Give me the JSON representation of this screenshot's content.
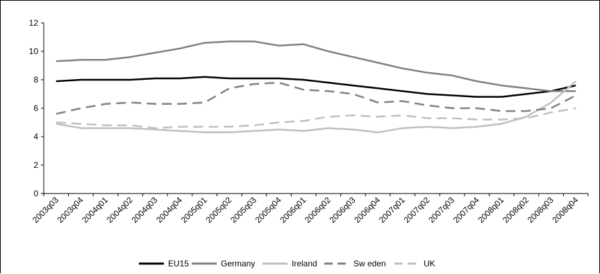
{
  "chart_data": {
    "type": "line",
    "title": "",
    "xlabel": "",
    "ylabel": "",
    "ylim": [
      0,
      12
    ],
    "yticks": [
      "0",
      "2",
      "4",
      "6",
      "8",
      "10",
      "12"
    ],
    "grid": false,
    "legend_position": "bottom",
    "categories": [
      "2003q03",
      "2003q04",
      "2004q01",
      "2004q02",
      "2004q03",
      "2004q04",
      "2005q01",
      "2005q02",
      "2005q03",
      "2005q04",
      "2006q01",
      "2006q02",
      "2006q03",
      "2006q04",
      "2007q01",
      "2007q02",
      "2007q03",
      "2007q04",
      "2008q01",
      "2008q02",
      "2008q03",
      "2008q04"
    ],
    "series": [
      {
        "name": "EU15",
        "color": "#000000",
        "dash": "solid",
        "values": [
          7.9,
          8.0,
          8.0,
          8.0,
          8.1,
          8.1,
          8.2,
          8.1,
          8.1,
          8.1,
          8.0,
          7.8,
          7.6,
          7.4,
          7.2,
          7.0,
          6.9,
          6.8,
          6.8,
          7.0,
          7.2,
          7.6
        ]
      },
      {
        "name": "Germany",
        "color": "#808080",
        "dash": "solid",
        "values": [
          9.3,
          9.4,
          9.4,
          9.6,
          9.9,
          10.2,
          10.6,
          10.7,
          10.7,
          10.4,
          10.5,
          10.0,
          9.6,
          9.2,
          8.8,
          8.5,
          8.3,
          7.9,
          7.6,
          7.4,
          7.2,
          7.2
        ]
      },
      {
        "name": "Ireland",
        "color": "#bfbfbf",
        "dash": "solid",
        "values": [
          4.9,
          4.6,
          4.6,
          4.6,
          4.5,
          4.4,
          4.3,
          4.3,
          4.4,
          4.5,
          4.4,
          4.6,
          4.5,
          4.3,
          4.6,
          4.7,
          4.6,
          4.7,
          4.9,
          5.4,
          6.4,
          7.9
        ]
      },
      {
        "name": "Sw eden",
        "color": "#808080",
        "dash": "long",
        "values": [
          5.6,
          6.0,
          6.3,
          6.4,
          6.3,
          6.3,
          6.4,
          7.4,
          7.7,
          7.8,
          7.3,
          7.2,
          7.0,
          6.4,
          6.5,
          6.2,
          6.0,
          6.0,
          5.8,
          5.8,
          6.0,
          6.9
        ]
      },
      {
        "name": "UK",
        "color": "#bfbfbf",
        "dash": "long",
        "values": [
          5.0,
          4.9,
          4.8,
          4.8,
          4.6,
          4.7,
          4.7,
          4.7,
          4.8,
          5.0,
          5.1,
          5.4,
          5.5,
          5.4,
          5.5,
          5.3,
          5.3,
          5.2,
          5.2,
          5.3,
          5.7,
          6.0
        ]
      }
    ]
  }
}
